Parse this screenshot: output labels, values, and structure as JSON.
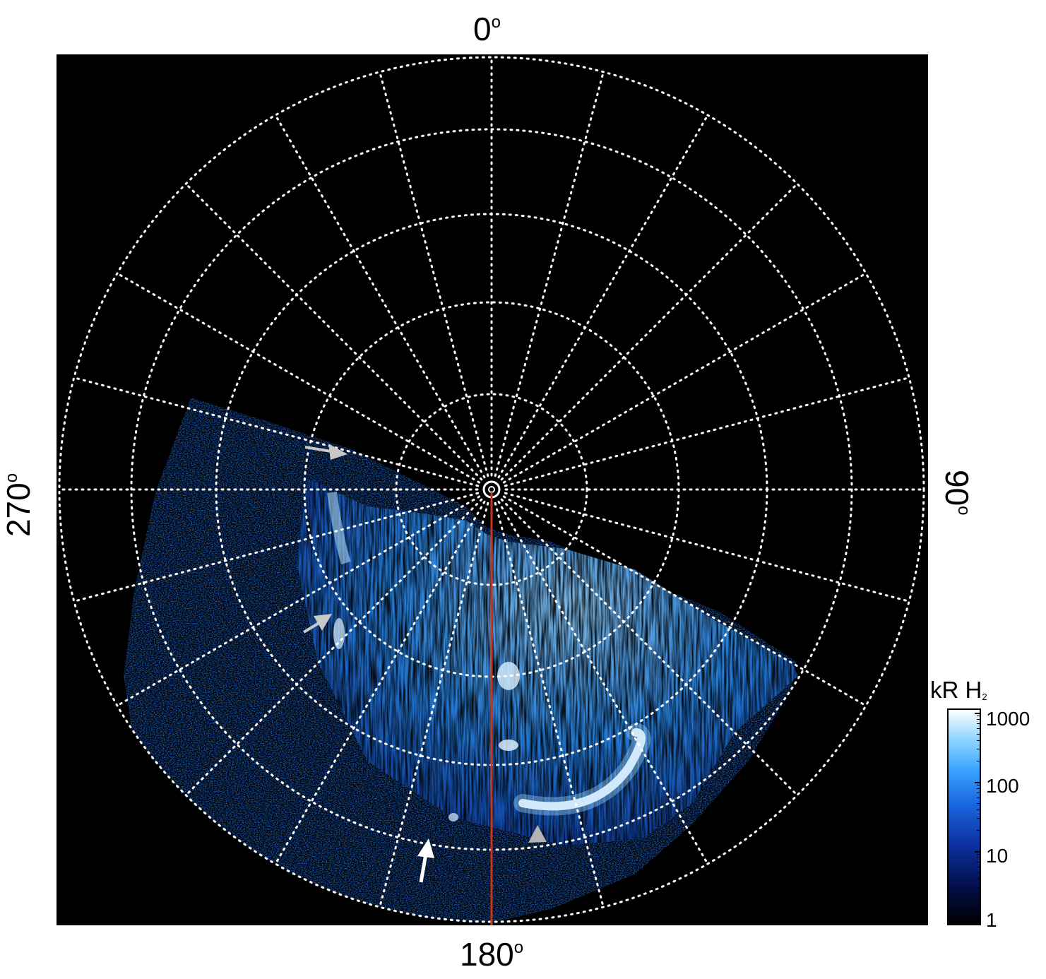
{
  "axis_labels": {
    "top": "0",
    "bottom": "180",
    "left": "270",
    "right": "90",
    "degree_symbol": "o"
  },
  "colorbar": {
    "title_main": "kR H",
    "title_sub": "2",
    "ticks": [
      "1000",
      "100",
      "10",
      "1"
    ],
    "scale": "log",
    "range": [
      1,
      1000
    ],
    "colors": [
      "#000000",
      "#03104d",
      "#0b2f9c",
      "#1a66e0",
      "#3aa3ff",
      "#8dd4ff",
      "#ffffff"
    ]
  },
  "image": {
    "description_colors": {
      "background": "#000000",
      "grid": "#ffffff",
      "meridian_line": "#c8361e",
      "arrow_white": "#ffffff",
      "arrow_gray": "#b4b4b4"
    }
  }
}
